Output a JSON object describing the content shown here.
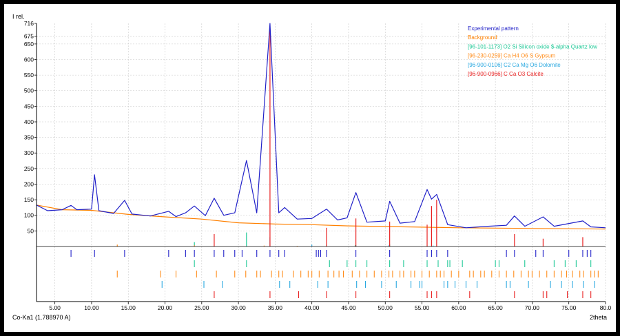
{
  "colors": {
    "experimental": "#2020c8",
    "background": "#ff8000",
    "quartz": "#1ec896",
    "gypsum": "#ff8c1a",
    "dolomite": "#29a8e0",
    "calcite": "#e82020",
    "grid": "#c8c8c8",
    "axis": "#000000"
  },
  "chart_data": {
    "type": "line",
    "title": "",
    "xlabel": "2theta",
    "ylabel": "I rel.",
    "radiation_label": "Co-Ka1 (1.788970 A)",
    "xlim": [
      2.5,
      80.0
    ],
    "ylim": [
      0,
      716
    ],
    "x_ticks": [
      "5.00",
      "10.00",
      "15.00",
      "20.00",
      "25.00",
      "30.00",
      "35.00",
      "40.00",
      "45.00",
      "50.00",
      "55.00",
      "60.00",
      "65.00",
      "70.00",
      "75.00",
      "80.0"
    ],
    "y_ticks": [
      716,
      675,
      650,
      600,
      550,
      500,
      450,
      400,
      350,
      300,
      250,
      200,
      150,
      100,
      50
    ],
    "grid": true,
    "legend_position": "top-right",
    "legend": [
      "Experimental pattern",
      "Background",
      "[96-101-1173] O2 Si Silicon oxide $-alpha Quartz low",
      "[96-230-0259] Ca H4 O6 S Gypsum",
      "[96-900-0106] C2 Ca Mg O6  Dolomite",
      "[96-900-0966] C Ca O3  Calcite"
    ],
    "experimental_pattern": {
      "x": [
        2.5,
        4.0,
        6.0,
        7.2,
        8.0,
        10.0,
        10.4,
        11.0,
        13.0,
        14.5,
        15.5,
        18.0,
        20.5,
        21.5,
        22.8,
        24.0,
        25.5,
        26.7,
        28.0,
        29.5,
        31.1,
        32.5,
        34.3,
        35.5,
        36.3,
        38.0,
        40.0,
        42.0,
        43.5,
        44.8,
        46.0,
        47.5,
        50.0,
        50.6,
        52.0,
        54.0,
        55.7,
        56.3,
        57.0,
        58.5,
        61.0,
        64.0,
        66.5,
        67.6,
        69.0,
        71.5,
        73.0,
        76.9,
        78.0,
        80.0
      ],
      "y": [
        133,
        115,
        118,
        132,
        118,
        120,
        230,
        115,
        106,
        148,
        104,
        98,
        113,
        96,
        108,
        130,
        99,
        155,
        100,
        108,
        276,
        108,
        716,
        108,
        125,
        88,
        90,
        120,
        85,
        92,
        173,
        78,
        82,
        145,
        75,
        80,
        183,
        152,
        167,
        70,
        60,
        65,
        68,
        98,
        65,
        95,
        65,
        82,
        63,
        60
      ]
    },
    "background": {
      "x": [
        2.5,
        6.0,
        10.0,
        15.0,
        20.0,
        25.0,
        30.0,
        35.0,
        40.0,
        45.0,
        50.0,
        55.0,
        60.0,
        65.0,
        70.0,
        75.0,
        80.0
      ],
      "y": [
        133,
        118,
        116,
        103,
        95,
        88,
        76,
        72,
        70,
        66,
        64,
        62,
        60,
        59,
        58,
        57,
        56
      ]
    },
    "phase_peaks": [
      {
        "phase": "Quartz",
        "x": [
          24.0,
          31.1,
          42.0,
          45.9,
          50.6,
          55.7
        ],
        "y": [
          14,
          45,
          6,
          4,
          7,
          3
        ]
      },
      {
        "phase": "Gypsum",
        "x": [
          13.5,
          24.0,
          33.5,
          38.0
        ],
        "y": [
          6,
          4,
          3,
          2
        ]
      },
      {
        "phase": "Dolomite",
        "x": [
          34.3,
          40.0,
          46.0,
          50.5,
          56.5
        ],
        "y": [
          30,
          6,
          4,
          4,
          3
        ]
      },
      {
        "phase": "Calcite",
        "x": [
          26.7,
          34.3,
          42.0,
          46.0,
          50.6,
          55.7,
          56.3,
          57.0,
          67.6,
          71.5,
          76.9
        ],
        "y": [
          40,
          700,
          60,
          90,
          80,
          70,
          130,
          150,
          40,
          25,
          30
        ]
      }
    ],
    "position_markers": {
      "experimental": [
        7.2,
        10.4,
        14.5,
        20.5,
        22.8,
        24.0,
        26.7,
        28.0,
        29.5,
        30.5,
        32.5,
        34.3,
        35.5,
        36.3,
        40.6,
        40.9,
        41.2,
        42.0,
        46.0,
        50.6,
        55.7,
        56.3,
        57.0,
        58.5,
        66.5,
        67.6,
        70.5,
        71.5,
        75.0,
        76.9,
        77.5,
        78.0
      ],
      "quartz": [
        24.0,
        31.1,
        42.4,
        44.8,
        46.0,
        47.5,
        50.6,
        52.5,
        55.7,
        57.2,
        58.5,
        58.8,
        60.5,
        65.0,
        65.5,
        69.0,
        73.0,
        74.5,
        76.0,
        78.0
      ],
      "gypsum": [
        13.5,
        19.4,
        21.5,
        24.3,
        27.0,
        29.5,
        31.0,
        32.5,
        33.0,
        34.5,
        35.5,
        36.0,
        37.5,
        38.5,
        39.5,
        40.0,
        41.0,
        42.2,
        43.0,
        43.7,
        44.3,
        45.5,
        46.5,
        47.5,
        48.5,
        49.5,
        50.5,
        51.0,
        52.0,
        52.5,
        53.5,
        54.0,
        55.0,
        56.0,
        57.0,
        57.5,
        58.0,
        59.0,
        60.0,
        61.5,
        62.0,
        63.0,
        63.5,
        64.5,
        65.5,
        66.5,
        67.5,
        68.5,
        69.5,
        70.0,
        71.0,
        72.0,
        73.0,
        74.0,
        74.7,
        75.5,
        76.5,
        77.0,
        78.0,
        78.5,
        79.0
      ],
      "dolomite": [
        19.6,
        25.3,
        27.8,
        35.6,
        37.0,
        40.8,
        42.2,
        46.1,
        47.3,
        49.5,
        51.5,
        53.5,
        54.7,
        55.0,
        58.0,
        58.5,
        59.5,
        61.0,
        62.5,
        66.5,
        67.0,
        69.5,
        72.5,
        74.0,
        75.5,
        77.0,
        78.5
      ],
      "calcite": [
        26.7,
        34.3,
        38.2,
        42.0,
        46.0,
        50.6,
        55.7,
        56.3,
        57.0,
        61.5,
        67.6,
        71.5,
        72.0,
        74.8,
        76.9,
        78.0
      ]
    }
  }
}
